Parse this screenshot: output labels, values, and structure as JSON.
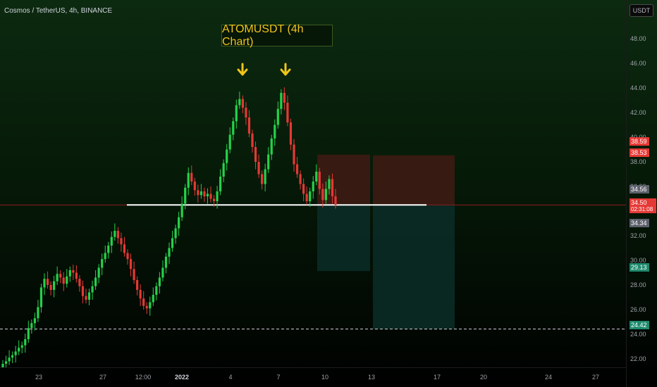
{
  "header": {
    "symbol_line": "Cosmos / TetherUS, 4h, BINANCE"
  },
  "title_box": {
    "text": "ATOMUSDT (4h Chart)"
  },
  "unit_button": {
    "label": "USDT"
  },
  "colors": {
    "up": "#26d14a",
    "down": "#e53935",
    "support_line": "#ffffff",
    "arrow": "#f0c419",
    "stop_zone": "#3a1a12",
    "target_zone": "#0b2a24"
  },
  "y_axis": {
    "ticks": [
      "48.00",
      "46.00",
      "44.00",
      "42.00",
      "40.00",
      "38.00",
      "36.00",
      "34.00",
      "32.00",
      "30.00",
      "28.00",
      "26.00",
      "24.00",
      "22.00"
    ],
    "tick_values": [
      48,
      46,
      44,
      42,
      40,
      38,
      36,
      34,
      32,
      30,
      28,
      26,
      24,
      22
    ]
  },
  "x_axis": {
    "ticks": [
      {
        "label": "23",
        "bold": false
      },
      {
        "label": "27",
        "bold": false
      },
      {
        "label": "12:00",
        "bold": false
      },
      {
        "label": "2022",
        "bold": true
      },
      {
        "label": "4",
        "bold": false
      },
      {
        "label": "7",
        "bold": false
      },
      {
        "label": "10",
        "bold": false
      },
      {
        "label": "13",
        "bold": false
      },
      {
        "label": "17",
        "bold": false
      },
      {
        "label": "20",
        "bold": false
      },
      {
        "label": "24",
        "bold": false
      },
      {
        "label": "27",
        "bold": false
      }
    ]
  },
  "price_tags": [
    {
      "label": "38.59",
      "value": 38.59,
      "color": "#e53935"
    },
    {
      "label": "38.53",
      "value": 38.53,
      "color": "#e53935"
    },
    {
      "label": "34.56",
      "value": 34.56,
      "color": "#5d606b"
    },
    {
      "label": "34.50",
      "value": 34.5,
      "color": "#e53935",
      "countdown": "02:31:08"
    },
    {
      "label": "34.34",
      "value": 34.34,
      "color": "#5d606b"
    },
    {
      "label": "29.13",
      "value": 29.13,
      "color": "#1f8a6e"
    },
    {
      "label": "24.42",
      "value": 24.42,
      "color": "#1f8a6e"
    }
  ],
  "chart_data": {
    "type": "candlestick",
    "series_closes": [
      21.6,
      21.8,
      22.1,
      22.3,
      22.6,
      22.9,
      23.1,
      23.6,
      24.5,
      24.9,
      25.3,
      26.2,
      27.8,
      28.5,
      28.0,
      27.6,
      28.3,
      28.9,
      28.6,
      28.1,
      28.7,
      29.2,
      29.0,
      28.5,
      27.9,
      27.1,
      26.8,
      27.4,
      27.9,
      28.6,
      29.4,
      30.1,
      30.6,
      31.2,
      31.9,
      32.4,
      31.8,
      31.3,
      30.6,
      30.1,
      29.3,
      28.4,
      27.6,
      26.9,
      26.3,
      26.1,
      26.6,
      27.2,
      27.9,
      28.6,
      29.4,
      30.3,
      31.0,
      31.8,
      32.6,
      33.5,
      34.6,
      35.9,
      37.1,
      36.4,
      35.7,
      35.3,
      35.6,
      35.2,
      35.4,
      35.0,
      34.8,
      35.6,
      36.8,
      37.9,
      39.0,
      40.2,
      41.3,
      42.6,
      43.1,
      42.4,
      41.6,
      40.3,
      39.2,
      38.0,
      37.0,
      36.2,
      37.4,
      38.6,
      39.9,
      41.0,
      42.3,
      43.6,
      42.8,
      41.2,
      39.4,
      37.8,
      37.0,
      36.2,
      35.4,
      34.8,
      35.6,
      36.4,
      37.2,
      35.8,
      34.9,
      35.8,
      36.6,
      35.2,
      34.5
    ],
    "patterns": [
      "double top"
    ],
    "support_level": 34.5,
    "long_position": {
      "entry": 34.56,
      "stop": 38.59,
      "target": 29.13
    },
    "extended_position": {
      "entry": 34.5,
      "stop": 38.53,
      "target": 24.42
    },
    "horizontal_dashed_levels": [
      24.42
    ]
  }
}
